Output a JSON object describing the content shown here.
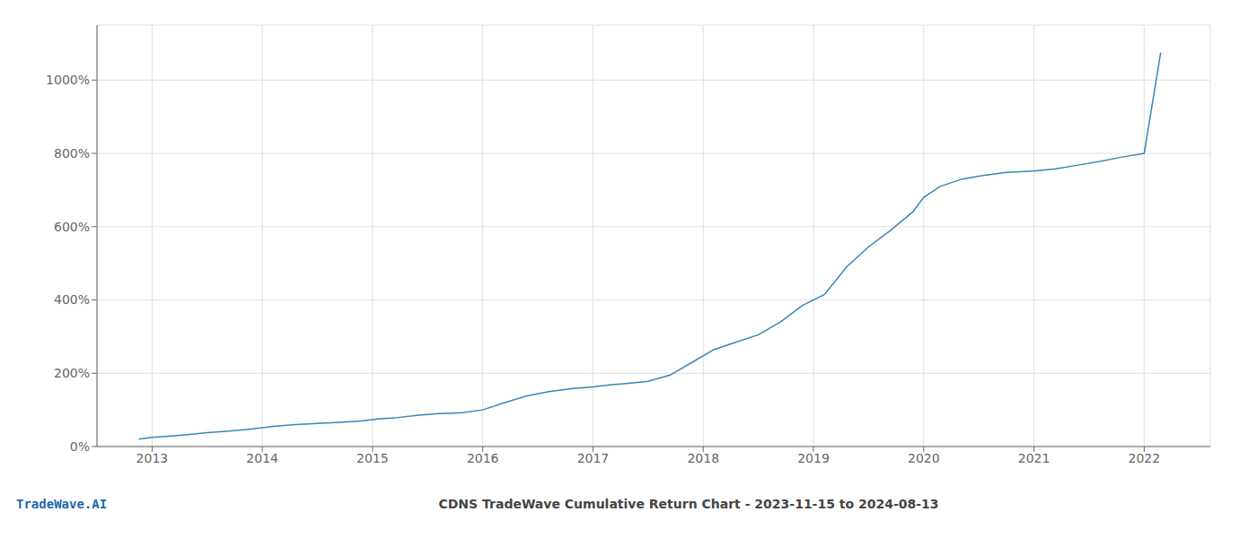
{
  "chart_data": {
    "type": "line",
    "title": "CDNS TradeWave Cumulative Return Chart - 2023-11-15 to 2024-08-13",
    "annotations": [
      {
        "text": "TradeWave.AI",
        "color": "#2266aa"
      }
    ],
    "x": [
      2012.88,
      2013.0,
      2013.15,
      2013.3,
      2013.5,
      2013.7,
      2013.9,
      2014.1,
      2014.3,
      2014.5,
      2014.7,
      2014.9,
      2015.05,
      2015.2,
      2015.4,
      2015.6,
      2015.8,
      2016.0,
      2016.2,
      2016.4,
      2016.6,
      2016.8,
      2017.0,
      2017.15,
      2017.3,
      2017.5,
      2017.7,
      2017.9,
      2018.1,
      2018.3,
      2018.5,
      2018.7,
      2018.9,
      2019.1,
      2019.3,
      2019.5,
      2019.7,
      2019.9,
      2020.0,
      2020.15,
      2020.35,
      2020.55,
      2020.75,
      2021.0,
      2021.2,
      2021.4,
      2021.6,
      2021.8,
      2022.0,
      2022.15
    ],
    "values": [
      20,
      25,
      28,
      32,
      38,
      42,
      48,
      55,
      60,
      63,
      66,
      70,
      75,
      78,
      85,
      90,
      92,
      100,
      120,
      138,
      150,
      158,
      163,
      168,
      172,
      178,
      195,
      230,
      265,
      285,
      305,
      340,
      385,
      415,
      490,
      545,
      590,
      640,
      680,
      710,
      730,
      740,
      748,
      752,
      758,
      768,
      778,
      790,
      800,
      1075
    ],
    "color": "#3a86b4",
    "xlim": [
      2012.5,
      2022.6
    ],
    "xticks": [
      2013,
      2014,
      2015,
      2016,
      2017,
      2018,
      2019,
      2020,
      2021,
      2022
    ],
    "ylim": [
      0,
      1150
    ],
    "yticks": [
      {
        "value": 0,
        "label": "0%"
      },
      {
        "value": 200,
        "label": "200%"
      },
      {
        "value": 400,
        "label": "400%"
      },
      {
        "value": 600,
        "label": "600%"
      },
      {
        "value": 800,
        "label": "800%"
      },
      {
        "value": 1000,
        "label": "1000%"
      }
    ],
    "grid": true
  }
}
